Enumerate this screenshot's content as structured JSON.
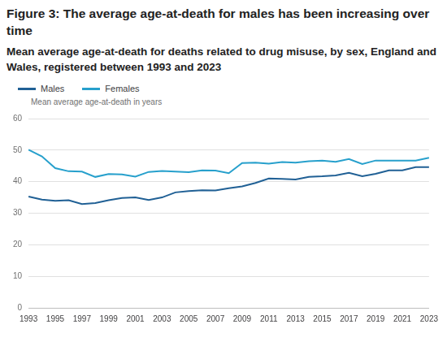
{
  "chart_data": {
    "type": "line",
    "title": "Figure 3: The average age-at-death for males has been increasing over time",
    "subtitle": "Mean average age-at-death for deaths related to drug misuse, by sex, England and Wales, registered between 1993 and 2023",
    "ylabel": "Mean average age-at-death in years",
    "categories": [
      "1993",
      null,
      "1995",
      null,
      "1997",
      null,
      "1999",
      null,
      "2001",
      null,
      "2003",
      null,
      "2005",
      null,
      "2007",
      null,
      "2009",
      null,
      "2011",
      null,
      "2013",
      null,
      "2015",
      null,
      "2017",
      null,
      "2019",
      null,
      "2021",
      null,
      "2023"
    ],
    "series": [
      {
        "name": "Males",
        "color": "#206095",
        "values": [
          35.3,
          34.3,
          33.9,
          34.1,
          32.9,
          33.2,
          34.1,
          34.8,
          35.0,
          34.2,
          35.0,
          36.6,
          37.0,
          37.3,
          37.2,
          37.9,
          38.5,
          39.6,
          41.0,
          40.9,
          40.7,
          41.5,
          41.7,
          42.0,
          42.8,
          41.7,
          42.5,
          43.6,
          43.6,
          44.6,
          44.6
        ]
      },
      {
        "name": "Females",
        "color": "#27a0cc",
        "values": [
          50.1,
          48.0,
          44.3,
          43.3,
          43.2,
          41.5,
          42.4,
          42.3,
          41.6,
          43.1,
          43.4,
          43.2,
          43.0,
          43.6,
          43.5,
          42.7,
          45.9,
          46.0,
          45.7,
          46.2,
          46.0,
          46.5,
          46.7,
          46.3,
          47.2,
          45.6,
          46.7,
          46.7,
          46.7,
          46.7,
          47.6
        ]
      }
    ],
    "ylim": [
      0,
      60
    ],
    "yticks": [
      0,
      10,
      20,
      30,
      40,
      50,
      60
    ],
    "grid": true,
    "legend": "top-left"
  }
}
